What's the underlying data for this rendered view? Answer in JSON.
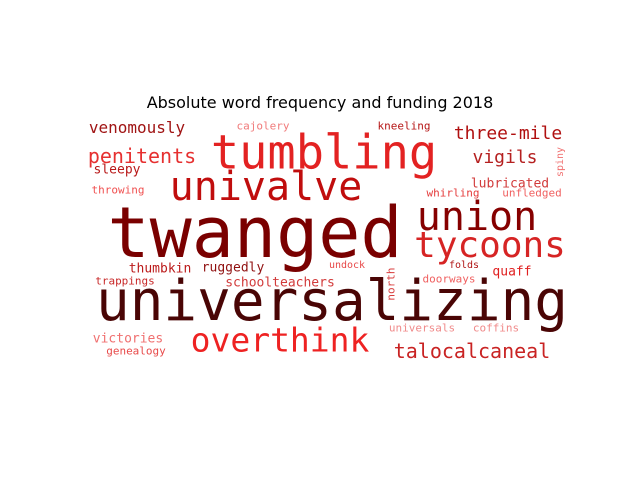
{
  "title": "Absolute word frequency and funding 2018",
  "words": [
    {
      "text": "twanged",
      "color": "#7a0000"
    },
    {
      "text": "universalizing",
      "color": "#4a0505"
    },
    {
      "text": "tumbling",
      "color": "#e32222"
    },
    {
      "text": "univalve",
      "color": "#c00d0d"
    },
    {
      "text": "union",
      "color": "#860000"
    },
    {
      "text": "tycoons",
      "color": "#d62424"
    },
    {
      "text": "overthink",
      "color": "#ee2222"
    },
    {
      "text": "talocalcaneal",
      "color": "#c92323"
    },
    {
      "text": "penitents",
      "color": "#e63030"
    },
    {
      "text": "three-mile",
      "color": "#b01010"
    },
    {
      "text": "vigils",
      "color": "#b52020"
    },
    {
      "text": "venomously",
      "color": "#a01414"
    },
    {
      "text": "sleepy",
      "color": "#b81818"
    },
    {
      "text": "lubricated",
      "color": "#d23b3b"
    },
    {
      "text": "cajolery",
      "color": "#f07a7a"
    },
    {
      "text": "kneeling",
      "color": "#b51515"
    },
    {
      "text": "spiny",
      "color": "#f07070"
    },
    {
      "text": "throwing",
      "color": "#f05050"
    },
    {
      "text": "whirling",
      "color": "#e43a3a"
    },
    {
      "text": "unfledged",
      "color": "#f06060"
    },
    {
      "text": "thumbkin",
      "color": "#bb1a1a"
    },
    {
      "text": "ruggedly",
      "color": "#901010"
    },
    {
      "text": "undock",
      "color": "#e74848"
    },
    {
      "text": "north",
      "color": "#d83c3c"
    },
    {
      "text": "folds",
      "color": "#b01616"
    },
    {
      "text": "quaff",
      "color": "#e02020"
    },
    {
      "text": "trappings",
      "color": "#c82828"
    },
    {
      "text": "schoolteachers",
      "color": "#d23b3b"
    },
    {
      "text": "doorways",
      "color": "#f06060"
    },
    {
      "text": "victories",
      "color": "#f07070"
    },
    {
      "text": "universals",
      "color": "#f08a8a"
    },
    {
      "text": "coffins",
      "color": "#f08a8a"
    },
    {
      "text": "genealogy",
      "color": "#e84a4a"
    }
  ]
}
